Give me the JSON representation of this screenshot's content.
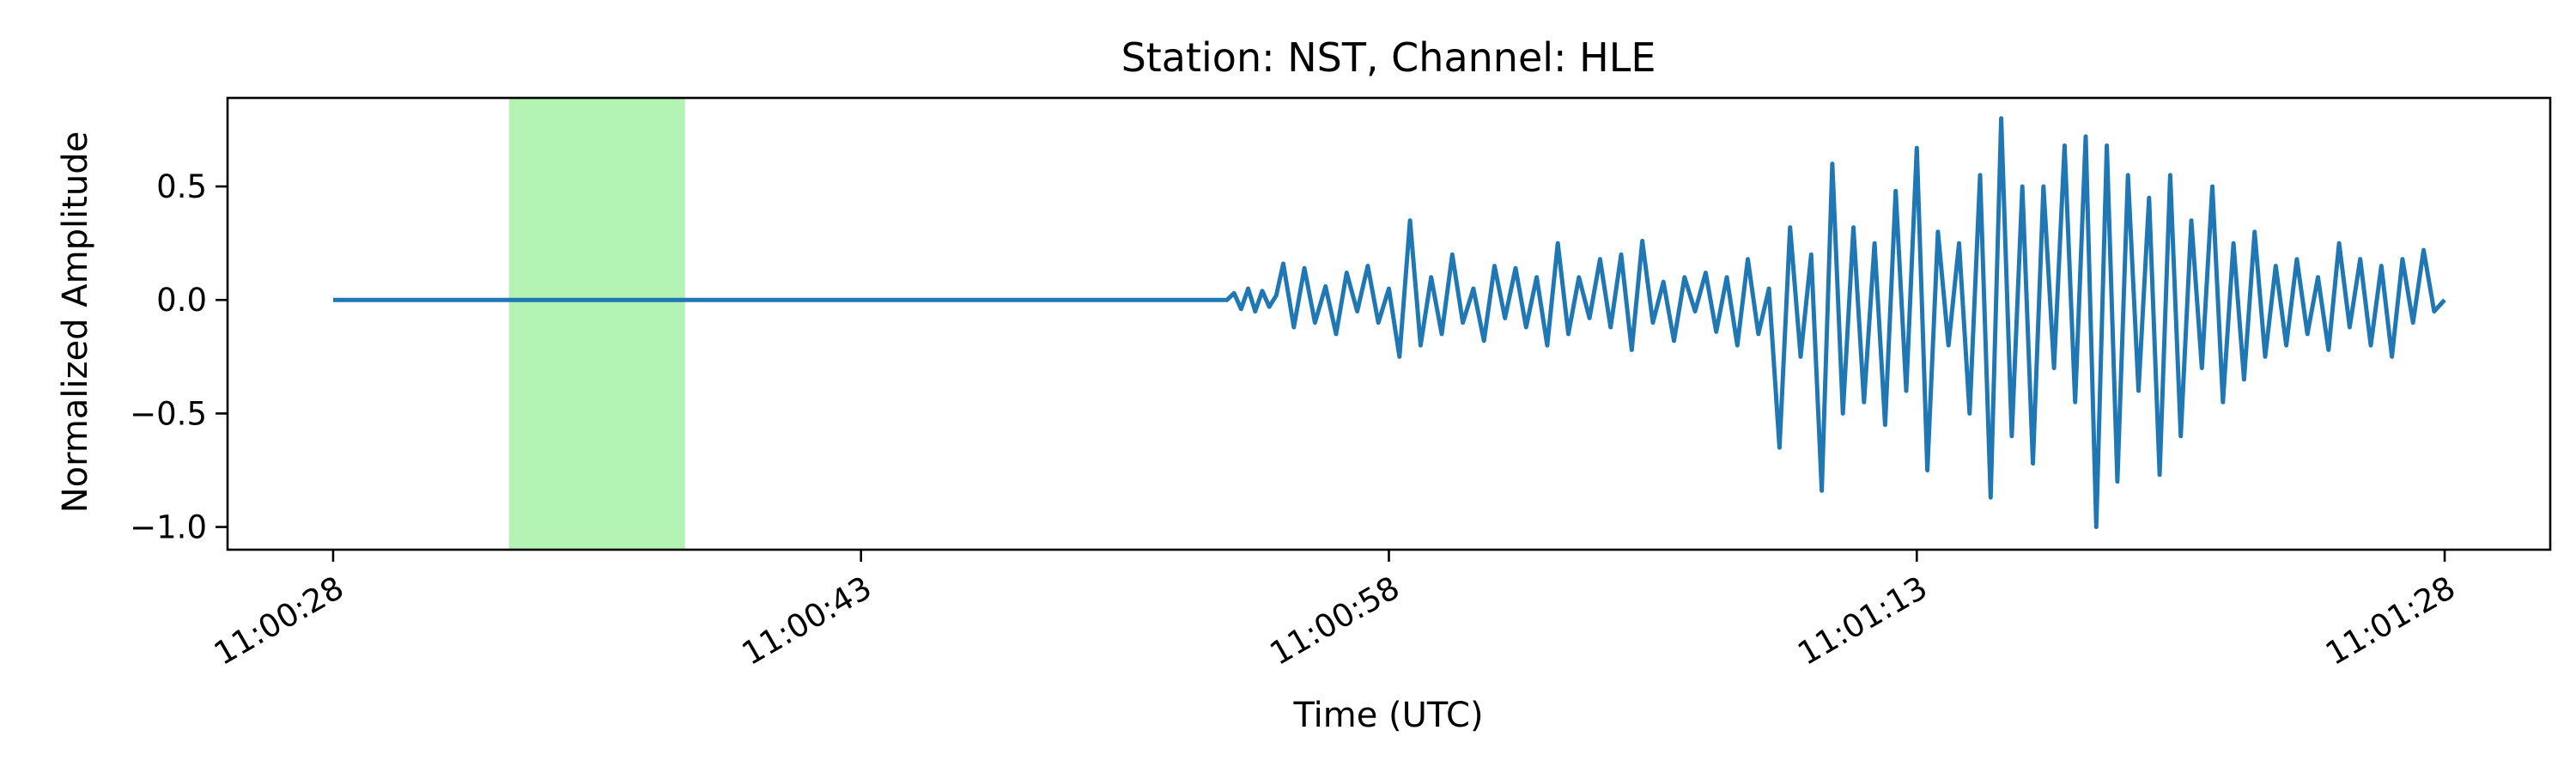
{
  "chart_data": {
    "type": "line",
    "title": "Station: NST, Channel: HLE",
    "xlabel": "Time (UTC)",
    "ylabel": "Normalized Amplitude",
    "x_ticks": [
      "11:00:28",
      "11:00:43",
      "11:00:58",
      "11:01:13",
      "11:01:28"
    ],
    "x_tick_seconds": [
      0,
      15,
      30,
      45,
      60
    ],
    "y_ticks": [
      "−1.0",
      "−0.5",
      "0.0",
      "0.5"
    ],
    "y_tick_values": [
      -1.0,
      -0.5,
      0.0,
      0.5
    ],
    "xlim_seconds": [
      -3,
      63
    ],
    "ylim": [
      -1.1,
      0.89
    ],
    "highlight_span_seconds": [
      5,
      10
    ],
    "highlight_color": "#b3f3b3",
    "series_color": "#1f77b4",
    "grid": false,
    "series": [
      {
        "x_seconds": [
          0,
          4,
          8,
          12,
          16,
          20,
          24,
          25.4,
          25.6,
          25.8,
          26.0,
          26.2,
          26.4,
          26.6,
          26.8,
          27.0,
          27.3,
          27.6,
          27.9,
          28.2,
          28.5,
          28.8,
          29.1,
          29.4,
          29.7,
          30.0,
          30.3,
          30.6,
          30.9,
          31.2,
          31.5,
          31.8,
          32.1,
          32.4,
          32.7,
          33.0,
          33.3,
          33.6,
          33.9,
          34.2,
          34.5,
          34.8,
          35.1,
          35.4,
          35.7,
          36.0,
          36.3,
          36.6,
          36.9,
          37.2,
          37.5,
          37.8,
          38.1,
          38.4,
          38.7,
          39.0,
          39.3,
          39.6,
          39.9,
          40.2,
          40.5,
          40.8,
          41.1,
          41.4,
          41.7,
          42.0,
          42.3,
          42.6,
          42.9,
          43.2,
          43.5,
          43.8,
          44.1,
          44.4,
          44.7,
          45.0,
          45.3,
          45.6,
          45.9,
          46.2,
          46.5,
          46.8,
          47.1,
          47.4,
          47.7,
          48.0,
          48.3,
          48.6,
          48.9,
          49.2,
          49.5,
          49.8,
          50.1,
          50.4,
          50.7,
          51.0,
          51.3,
          51.6,
          51.9,
          52.2,
          52.5,
          52.8,
          53.1,
          53.4,
          53.7,
          54.0,
          54.3,
          54.6,
          54.9,
          55.2,
          55.5,
          55.8,
          56.1,
          56.4,
          56.7,
          57.0,
          57.3,
          57.6,
          57.9,
          58.2,
          58.5,
          58.8,
          59.1,
          59.4,
          59.7,
          60.0
        ],
        "y": [
          0.0,
          0.0,
          0.0,
          0.0,
          0.0,
          0.0,
          0.0,
          0.0,
          0.03,
          -0.04,
          0.05,
          -0.05,
          0.04,
          -0.03,
          0.02,
          0.16,
          -0.12,
          0.14,
          -0.1,
          0.06,
          -0.15,
          0.12,
          -0.05,
          0.15,
          -0.1,
          0.05,
          -0.25,
          0.35,
          -0.2,
          0.1,
          -0.15,
          0.2,
          -0.1,
          0.05,
          -0.18,
          0.15,
          -0.08,
          0.14,
          -0.12,
          0.1,
          -0.2,
          0.25,
          -0.15,
          0.1,
          -0.08,
          0.18,
          -0.12,
          0.2,
          -0.22,
          0.26,
          -0.1,
          0.08,
          -0.18,
          0.1,
          -0.05,
          0.12,
          -0.14,
          0.1,
          -0.2,
          0.18,
          -0.15,
          0.05,
          -0.65,
          0.32,
          -0.25,
          0.2,
          -0.84,
          0.6,
          -0.5,
          0.32,
          -0.45,
          0.25,
          -0.55,
          0.48,
          -0.4,
          0.67,
          -0.75,
          0.3,
          -0.2,
          0.25,
          -0.5,
          0.55,
          -0.87,
          0.8,
          -0.6,
          0.5,
          -0.72,
          0.5,
          -0.3,
          0.68,
          -0.45,
          0.72,
          -1.0,
          0.68,
          -0.8,
          0.55,
          -0.4,
          0.45,
          -0.77,
          0.55,
          -0.6,
          0.35,
          -0.3,
          0.5,
          -0.45,
          0.25,
          -0.35,
          0.3,
          -0.25,
          0.15,
          -0.2,
          0.18,
          -0.15,
          0.1,
          -0.22,
          0.25,
          -0.12,
          0.18,
          -0.2,
          0.15,
          -0.25,
          0.18,
          -0.1,
          0.22,
          -0.05,
          0.0
        ]
      }
    ]
  }
}
